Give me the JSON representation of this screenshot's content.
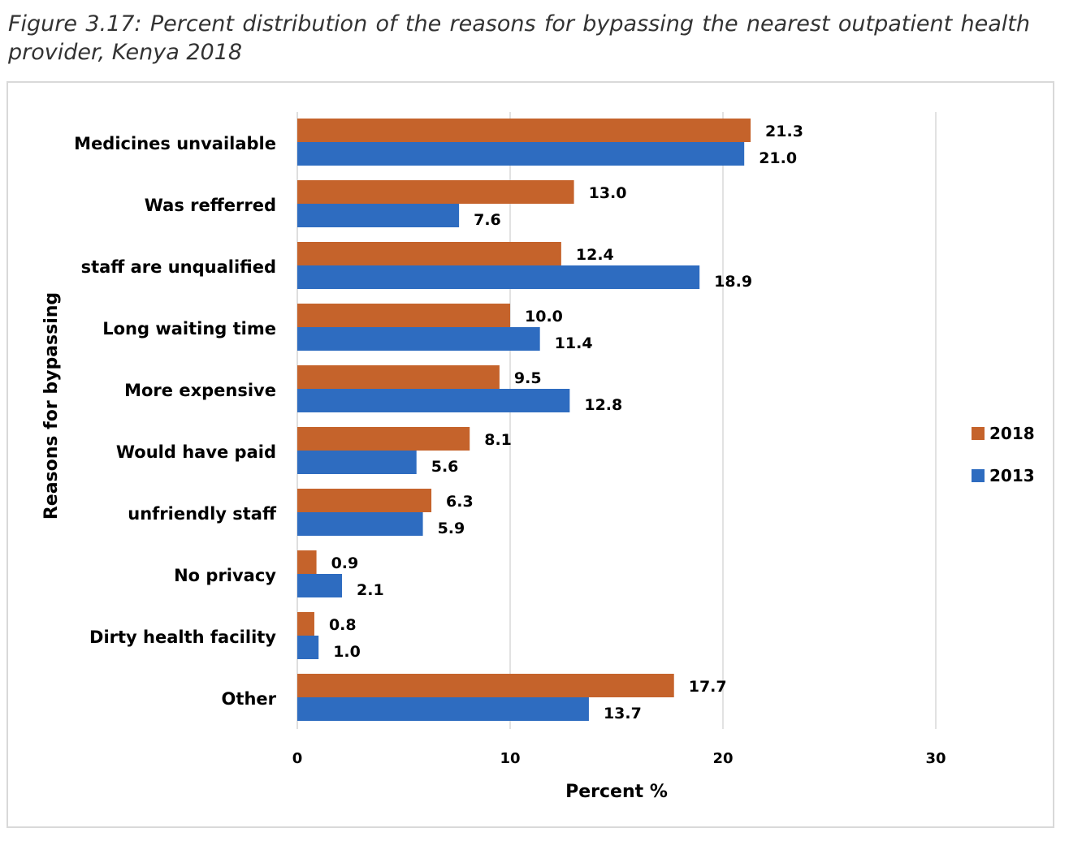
{
  "caption": "Figure 3.17: Percent distribution of the reasons for bypassing the nearest outpatient health provider, Kenya 2018",
  "chart_data": {
    "type": "bar",
    "orientation": "horizontal",
    "title": "",
    "xlabel": "Percent %",
    "ylabel": "Reasons for bypassing",
    "xlim": [
      0,
      30
    ],
    "xticks": [
      0,
      10,
      20,
      30
    ],
    "grid": true,
    "legend_position": "right",
    "categories": [
      "Medicines unvailable",
      "Was refferred",
      "staff are unqualified",
      "Long waiting time",
      "More expensive",
      "Would have paid",
      "unfriendly staff",
      "No privacy",
      "Dirty health facility",
      "Other"
    ],
    "series": [
      {
        "name": "2018",
        "color": "#c5632b",
        "values": [
          21.3,
          13.0,
          12.4,
          10.0,
          9.5,
          8.1,
          6.3,
          0.9,
          0.8,
          17.7
        ],
        "labels": [
          "21.3",
          "13.0",
          "12.4",
          "10.0",
          "9.5",
          "8.1",
          "6.3",
          "0.9",
          "0.8",
          "17.7"
        ]
      },
      {
        "name": "2013",
        "color": "#2e6cc0",
        "values": [
          21.0,
          7.6,
          18.9,
          11.4,
          12.8,
          5.6,
          5.9,
          2.1,
          1.0,
          13.7
        ],
        "labels": [
          "21.0",
          "7.6",
          "18.9",
          "11.4",
          "12.8",
          "5.6",
          "5.9",
          "2.1",
          "1.0",
          "13.7"
        ]
      }
    ]
  }
}
